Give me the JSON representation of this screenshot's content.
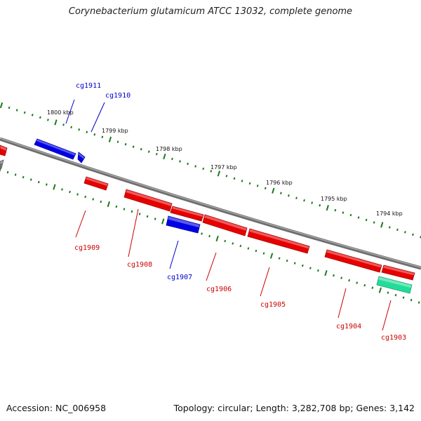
{
  "title": "Corynebacterium glutamicum ATCC 13032, complete genome",
  "accession_text": "Accession: NC_006958",
  "summary_text": "Topology: circular; Length: 3,282,708 bp; Genes: 3,142",
  "colors": {
    "backbone": "#808080",
    "tick": "#1a7a1a",
    "forward_gene": "#0000e6",
    "reverse_gene": "#e60000",
    "rna_gene": "#22dd99",
    "forward_label": "#0000cc",
    "reverse_label": "#cc0000"
  },
  "ticks": [
    {
      "label": "1800 kbp"
    },
    {
      "label": "1799 kbp"
    },
    {
      "label": "1798 kbp"
    },
    {
      "label": "1797 kbp"
    },
    {
      "label": "1796 kbp"
    },
    {
      "label": "1795 kbp"
    },
    {
      "label": "1794 kbp"
    }
  ],
  "genes": [
    {
      "id": "cg1911",
      "strand": "forward"
    },
    {
      "id": "cg1910",
      "strand": "forward"
    },
    {
      "id": "cg1909",
      "strand": "reverse"
    },
    {
      "id": "cg1908",
      "strand": "reverse"
    },
    {
      "id": "cg1907",
      "strand": "forward"
    },
    {
      "id": "cg1906",
      "strand": "reverse"
    },
    {
      "id": "cg1905",
      "strand": "reverse"
    },
    {
      "id": "cg1904",
      "strand": "reverse"
    },
    {
      "id": "cg1903",
      "strand": "rna"
    }
  ]
}
